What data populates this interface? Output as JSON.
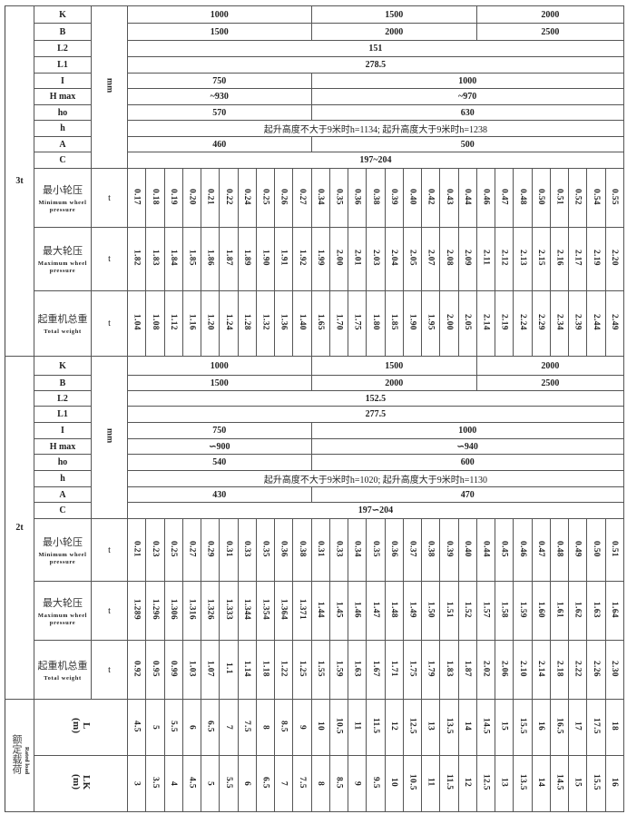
{
  "sections": [
    {
      "label": "3t",
      "unit": "mm",
      "params": [
        {
          "name": "K",
          "spans": [
            {
              "value": "1000",
              "span": 10
            },
            {
              "value": "1500",
              "span": 9
            },
            {
              "value": "2000",
              "span": 8
            }
          ]
        },
        {
          "name": "B",
          "spans": [
            {
              "value": "1500",
              "span": 10
            },
            {
              "value": "2000",
              "span": 9
            },
            {
              "value": "2500",
              "span": 8
            }
          ]
        },
        {
          "name": "L2",
          "spans": [
            {
              "value": "151",
              "span": 27
            }
          ]
        },
        {
          "name": "L1",
          "spans": [
            {
              "value": "278.5",
              "span": 27
            }
          ]
        },
        {
          "name": "I",
          "spans": [
            {
              "value": "750",
              "span": 10
            },
            {
              "value": "1000",
              "span": 17
            }
          ]
        },
        {
          "name": "H max",
          "spans": [
            {
              "value": "~930",
              "span": 10
            },
            {
              "value": "~970",
              "span": 17
            }
          ]
        },
        {
          "name": "ho",
          "spans": [
            {
              "value": "570",
              "span": 10
            },
            {
              "value": "630",
              "span": 17
            }
          ]
        },
        {
          "name": "h",
          "spans": [
            {
              "value": "起升高度不大于9米时h=1134; 起升高度大于9米时h=1238",
              "span": 27
            }
          ]
        },
        {
          "name": "A",
          "spans": [
            {
              "value": "460",
              "span": 10
            },
            {
              "value": "500",
              "span": 17
            }
          ]
        },
        {
          "name": "C",
          "spans": [
            {
              "value": "197~204",
              "span": 27
            }
          ]
        }
      ],
      "rows": [
        {
          "zh": "最小轮压",
          "en": "Minimum wheel pressure",
          "unit": "t",
          "values": [
            "0.17",
            "0.18",
            "0.19",
            "0.20",
            "0.21",
            "0.22",
            "0.24",
            "0.25",
            "0.26",
            "0.27",
            "0.34",
            "0.35",
            "0.36",
            "0.38",
            "0.39",
            "0.40",
            "0.42",
            "0.43",
            "0.44",
            "0.46",
            "0.47",
            "0.48",
            "0.50",
            "0.51",
            "0.52",
            "0.54",
            "0.55"
          ]
        },
        {
          "zh": "最大轮压",
          "en": "Maximum wheel pressure",
          "unit": "t",
          "values": [
            "1.82",
            "1.83",
            "1.84",
            "1.85",
            "1.86",
            "1.87",
            "1.89",
            "1.90",
            "1.91",
            "1.92",
            "1.99",
            "2.00",
            "2.01",
            "2.03",
            "2.04",
            "2.05",
            "2.07",
            "2.08",
            "2.09",
            "2.11",
            "2.12",
            "2.13",
            "2.15",
            "2.16",
            "2.17",
            "2.19",
            "2.20"
          ]
        },
        {
          "zh": "起重机总重",
          "en": "Total weight",
          "unit": "t",
          "values": [
            "1.04",
            "1.08",
            "1.12",
            "1.16",
            "1.20",
            "1.24",
            "1.28",
            "1.32",
            "1.36",
            "1.40",
            "1.65",
            "1.70",
            "1.75",
            "1.80",
            "1.85",
            "1.90",
            "1.95",
            "2.00",
            "2.05",
            "2.14",
            "2.19",
            "2.24",
            "2.29",
            "2.34",
            "2.39",
            "2.44",
            "2.49"
          ]
        }
      ]
    },
    {
      "label": "2t",
      "unit": "mm",
      "params": [
        {
          "name": "K",
          "spans": [
            {
              "value": "1000",
              "span": 10
            },
            {
              "value": "1500",
              "span": 9
            },
            {
              "value": "2000",
              "span": 8
            }
          ]
        },
        {
          "name": "B",
          "spans": [
            {
              "value": "1500",
              "span": 10
            },
            {
              "value": "2000",
              "span": 9
            },
            {
              "value": "2500",
              "span": 8
            }
          ]
        },
        {
          "name": "L2",
          "spans": [
            {
              "value": "152.5",
              "span": 27
            }
          ]
        },
        {
          "name": "L1",
          "spans": [
            {
              "value": "277.5",
              "span": 27
            }
          ]
        },
        {
          "name": "I",
          "spans": [
            {
              "value": "750",
              "span": 10
            },
            {
              "value": "1000",
              "span": 17
            }
          ]
        },
        {
          "name": "H max",
          "spans": [
            {
              "value": "∽900",
              "span": 10
            },
            {
              "value": "∽940",
              "span": 17
            }
          ]
        },
        {
          "name": "ho",
          "spans": [
            {
              "value": "540",
              "span": 10
            },
            {
              "value": "600",
              "span": 17
            }
          ]
        },
        {
          "name": "h",
          "spans": [
            {
              "value": "起升高度不大于9米时h=1020; 起升高度大于9米时h=1130",
              "span": 27
            }
          ]
        },
        {
          "name": "A",
          "spans": [
            {
              "value": "430",
              "span": 10
            },
            {
              "value": "470",
              "span": 17
            }
          ]
        },
        {
          "name": "C",
          "spans": [
            {
              "value": "197∽204",
              "span": 27
            }
          ]
        }
      ],
      "rows": [
        {
          "zh": "最小轮压",
          "en": "Minimum wheel pressure",
          "unit": "t",
          "values": [
            "0.21",
            "0.23",
            "0.25",
            "0.27",
            "0.29",
            "0.31",
            "0.33",
            "0.35",
            "0.36",
            "0.38",
            "0.31",
            "0.33",
            "0.34",
            "0.35",
            "0.36",
            "0.37",
            "0.38",
            "0.39",
            "0.40",
            "0.44",
            "0.45",
            "0.46",
            "0.47",
            "0.48",
            "0.49",
            "0.50",
            "0.51"
          ]
        },
        {
          "zh": "最大轮压",
          "en": "Maximum wheel pressure",
          "unit": "t",
          "values": [
            "1.289",
            "1.296",
            "1.306",
            "1.316",
            "1.326",
            "1.333",
            "1.344",
            "1.354",
            "1.364",
            "1.371",
            "1.44",
            "1.45",
            "1.46",
            "1.47",
            "1.48",
            "1.49",
            "1.50",
            "1.51",
            "1.52",
            "1.57",
            "1.58",
            "1.59",
            "1.60",
            "1.61",
            "1.62",
            "1.63",
            "1.64"
          ]
        },
        {
          "zh": "起重机总重",
          "en": "Total weight",
          "unit": "t",
          "values": [
            "0.92",
            "0.95",
            "0.99",
            "1.03",
            "1.07",
            "1.1",
            "1.14",
            "1.18",
            "1.22",
            "1.25",
            "1.55",
            "1.59",
            "1.63",
            "1.67",
            "1.71",
            "1.75",
            "1.79",
            "1.83",
            "1.87",
            "2.02",
            "2.06",
            "2.10",
            "2.14",
            "2.18",
            "2.22",
            "2.26",
            "2.30"
          ]
        }
      ]
    }
  ],
  "rated": {
    "label_zh": "额定载荷",
    "label_en": "Rated load",
    "rows": [
      {
        "name": "L",
        "unit": "(m)",
        "values": [
          "4.5",
          "5",
          "5.5",
          "6",
          "6.5",
          "7",
          "7.5",
          "8",
          "8.5",
          "9",
          "10",
          "10.5",
          "11",
          "11.5",
          "12",
          "12.5",
          "13",
          "13.5",
          "14",
          "14.5",
          "15",
          "15.5",
          "16",
          "16.5",
          "17",
          "17.5",
          "18"
        ]
      },
      {
        "name": "LK",
        "unit": "(m)",
        "values": [
          "3",
          "3.5",
          "4",
          "4.5",
          "5",
          "5.5",
          "6",
          "6.5",
          "7",
          "7.5",
          "8",
          "8.5",
          "9",
          "9.5",
          "10",
          "10.5",
          "11",
          "11.5",
          "12",
          "12.5",
          "13",
          "13.5",
          "14",
          "14.5",
          "15",
          "15.5",
          "16"
        ]
      }
    ]
  }
}
